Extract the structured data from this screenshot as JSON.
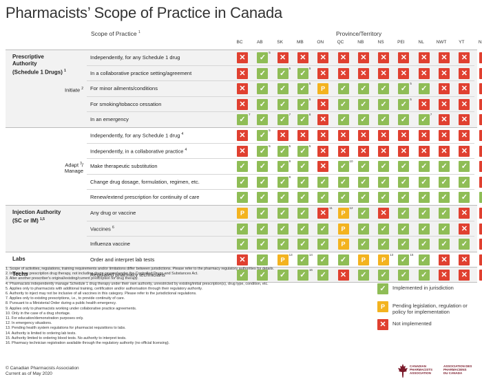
{
  "title": "Pharmacists’ Scope of Practice in Canada",
  "scope_header": "Scope of Practice",
  "scope_header_sup": "1",
  "province_header": "Province/Territory",
  "provinces": [
    "BC",
    "AB",
    "SK",
    "MB",
    "ON",
    "QC",
    "NB",
    "NS",
    "PEI",
    "NL",
    "NWT",
    "YT",
    "NU"
  ],
  "sections": [
    {
      "title_lines": [
        "Prescriptive",
        "Authority",
        "(Schedule 1 Drugs)"
      ],
      "title_sup": "1",
      "sub_label_lines": [
        "Initiate"
      ],
      "sub_label_sup": "2",
      "rows": [
        {
          "label": "Independently, for any Schedule 1 drug",
          "sup": "",
          "cells": [
            "N",
            "Y",
            "N",
            "N",
            "N",
            "N",
            "N",
            "N",
            "N",
            "N",
            "N",
            "N",
            "N"
          ],
          "fns": [
            {
              "col": 1,
              "text": "5"
            }
          ]
        },
        {
          "label": "In a collaborative practice setting/agreement",
          "sup": "",
          "cells": [
            "N",
            "Y",
            "Y",
            "Y",
            "N",
            "N",
            "N",
            "N",
            "N",
            "N",
            "N",
            "N",
            "N"
          ],
          "fns": [
            {
              "col": 2,
              "text": "5"
            },
            {
              "col": 3,
              "text": "5"
            }
          ]
        },
        {
          "label": "For minor ailments/conditions",
          "sup": "",
          "cells": [
            "N",
            "Y",
            "Y",
            "Y",
            "P",
            "Y",
            "Y",
            "Y",
            "Y",
            "Y",
            "N",
            "N",
            "N"
          ],
          "fns": [
            {
              "col": 3,
              "text": "5"
            },
            {
              "col": 8,
              "text": "5"
            }
          ]
        },
        {
          "label": "For smoking/tobacco cessation",
          "sup": "",
          "cells": [
            "N",
            "Y",
            "Y",
            "Y",
            "N",
            "Y",
            "Y",
            "Y",
            "Y",
            "N",
            "N",
            "N",
            "N"
          ],
          "fns": [
            {
              "col": 3,
              "text": "5"
            },
            {
              "col": 8,
              "text": "5"
            }
          ]
        },
        {
          "label": "In an emergency",
          "sup": "",
          "cells": [
            "Y",
            "Y",
            "Y",
            "Y",
            "N",
            "Y",
            "Y",
            "Y",
            "Y",
            "Y",
            "N",
            "N",
            "N"
          ],
          "fns": [
            {
              "col": 0,
              "text": "7"
            },
            {
              "col": 2,
              "text": "7"
            },
            {
              "col": 3,
              "text": "8"
            },
            {
              "col": 9,
              "text": "7"
            }
          ]
        }
      ]
    },
    {
      "title_lines": [],
      "title_sup": "",
      "sub_label_lines": [
        "Adapt",
        "Manage"
      ],
      "sub_label_sup": "3",
      "rows": [
        {
          "label": "Independently, for any Schedule 1 drug",
          "sup": "4",
          "cells": [
            "N",
            "Y",
            "N",
            "N",
            "N",
            "N",
            "N",
            "N",
            "N",
            "N",
            "N",
            "N",
            "N"
          ],
          "fns": [
            {
              "col": 1,
              "text": "5"
            }
          ]
        },
        {
          "label": "Independently, in a collaborative practice",
          "sup": "4",
          "cells": [
            "N",
            "Y",
            "Y",
            "Y",
            "N",
            "N",
            "N",
            "N",
            "N",
            "N",
            "N",
            "N",
            "N"
          ],
          "fns": [
            {
              "col": 1,
              "text": "5"
            },
            {
              "col": 2,
              "text": "5"
            },
            {
              "col": 3,
              "text": "5"
            }
          ]
        },
        {
          "label": "Make therapeutic substitution",
          "sup": "",
          "cells": [
            "Y",
            "Y",
            "Y",
            "Y",
            "N",
            "Y",
            "Y",
            "Y",
            "Y",
            "Y",
            "Y",
            "Y",
            "N"
          ],
          "fns": [
            {
              "col": 2,
              "text": "9"
            },
            {
              "col": 5,
              "text": "10"
            }
          ]
        },
        {
          "label": "Change drug dosage, formulation, regimen, etc.",
          "sup": "",
          "cells": [
            "Y",
            "Y",
            "Y",
            "Y",
            "Y",
            "Y",
            "Y",
            "Y",
            "Y",
            "Y",
            "Y",
            "Y",
            "N"
          ],
          "fns": [
            {
              "col": 2,
              "text": "9"
            }
          ]
        },
        {
          "label": "Renew/extend prescription for continuity of care",
          "sup": "",
          "cells": [
            "Y",
            "Y",
            "Y",
            "Y",
            "Y",
            "Y",
            "Y",
            "Y",
            "Y",
            "Y",
            "Y",
            "Y",
            "Y"
          ],
          "fns": []
        }
      ]
    },
    {
      "title_lines": [
        "Injection Authority",
        "(SC or IM)"
      ],
      "title_sup": "1,5",
      "sub_label_lines": [],
      "sub_label_sup": "",
      "rows": [
        {
          "label": "Any drug or vaccine",
          "sup": "",
          "cells": [
            "P",
            "Y",
            "Y",
            "Y",
            "N",
            "P",
            "Y",
            "N",
            "Y",
            "Y",
            "Y",
            "N",
            "N"
          ],
          "fns": [
            {
              "col": 4,
              "text": "11"
            },
            {
              "col": 5,
              "text": "12"
            }
          ]
        },
        {
          "label": "Vaccines",
          "sup": "6",
          "cells": [
            "Y",
            "Y",
            "Y",
            "Y",
            "Y",
            "P",
            "Y",
            "Y",
            "Y",
            "Y",
            "Y",
            "N",
            "N"
          ],
          "fns": []
        },
        {
          "label": "Influenza vaccine",
          "sup": "",
          "cells": [
            "Y",
            "Y",
            "Y",
            "Y",
            "Y",
            "P",
            "Y",
            "Y",
            "Y",
            "Y",
            "Y",
            "Y",
            "N"
          ],
          "fns": []
        }
      ]
    },
    {
      "title_lines": [
        "Labs"
      ],
      "title_sup": "",
      "sub_label_lines": [],
      "sub_label_sup": "",
      "rows": [
        {
          "label": "Order and interpret lab tests",
          "sup": "",
          "cells": [
            "N",
            "Y",
            "P",
            "Y",
            "Y",
            "Y",
            "P",
            "P",
            "Y",
            "Y",
            "N",
            "N",
            "N"
          ],
          "fns": [
            {
              "col": 2,
              "text": "13"
            },
            {
              "col": 3,
              "text": "14"
            },
            {
              "col": 7,
              "text": "13"
            },
            {
              "col": 8,
              "text": "15"
            }
          ]
        }
      ]
    },
    {
      "title_lines": [
        "Techs"
      ],
      "title_sup": "",
      "sub_label_lines": [],
      "sub_label_sup": "",
      "rows": [
        {
          "label": "Regulated pharmacy technicians",
          "sup": "",
          "cells": [
            "Y",
            "Y",
            "Y",
            "Y",
            "Y",
            "N",
            "Y",
            "Y",
            "Y",
            "Y",
            "N",
            "N",
            "N"
          ],
          "fns": [
            {
              "col": 3,
              "text": "16"
            }
          ]
        }
      ]
    }
  ],
  "footnotes": [
    "1.   Scope of activities, regulations, training requirements and/or limitations differ between jurisdictions. Please refer to the pharmacy regulatory authorities for details.",
    "2.   Initiate new prescription drug therapy, not including drugs covered under the Controlled Drugs and Substances Act.",
    "3.   Alter another prescriber's original/existing/current prescription for drug therapy.",
    "4.   Pharmacists independently manage Schedule 1 drug therapy under their own authority, unrestricted by existing/initial prescription(s), drug type, condition, etc.",
    "5.   Applies only to pharmacists with additional training, certification and/or authorisation through their regulatory authority.",
    "6.   Authority to inject may not be inclusive of all vaccines in this category. Please refer to the jurisdictional regulations.",
    "7.   Applies only to existing prescriptions, i.e., to provide continuity of care.",
    "8.   Pursuant to a Ministerial Order during a public health emergency.",
    "9.   Applies only to pharmacists working under collaborative practice agreements.",
    "10.  Only in the case of a drug shortage.",
    "11.  For education/demonstration purposes only.",
    "12.  In emergency situations.",
    "13.  Pending health system regulations for pharmacist requisitions to labs.",
    "14.  Authority is limited to ordering lab tests.",
    "15.  Authority limited to ordering blood tests. No authority to interpret tests.",
    "16.  Pharmacy technician registration available through the regulatory authority (no official licensing)."
  ],
  "footer": {
    "copyright": "© Canadian Pharmacists Association",
    "current": "Current as of May 2020"
  },
  "legend": [
    {
      "code": "Y",
      "text": "Implemented in jurisdiction"
    },
    {
      "code": "P",
      "text": "Pending legislation, regulation or policy for implementation"
    },
    {
      "code": "N",
      "text": "Not implemented"
    }
  ],
  "symbols": {
    "Y": "✓",
    "N": "✕",
    "P": "P"
  },
  "logo": {
    "en_lines": [
      "CANADIAN",
      "PHARMACISTS",
      "ASSOCIATION"
    ],
    "fr_lines": [
      "ASSOCIATION DES",
      "PHARMACIENS",
      "DU CANADA"
    ]
  },
  "colors": {
    "implemented": "#8fbd56",
    "pending": "#f3b31f",
    "not_implemented": "#e04030",
    "logo": "#7a1a2a"
  }
}
